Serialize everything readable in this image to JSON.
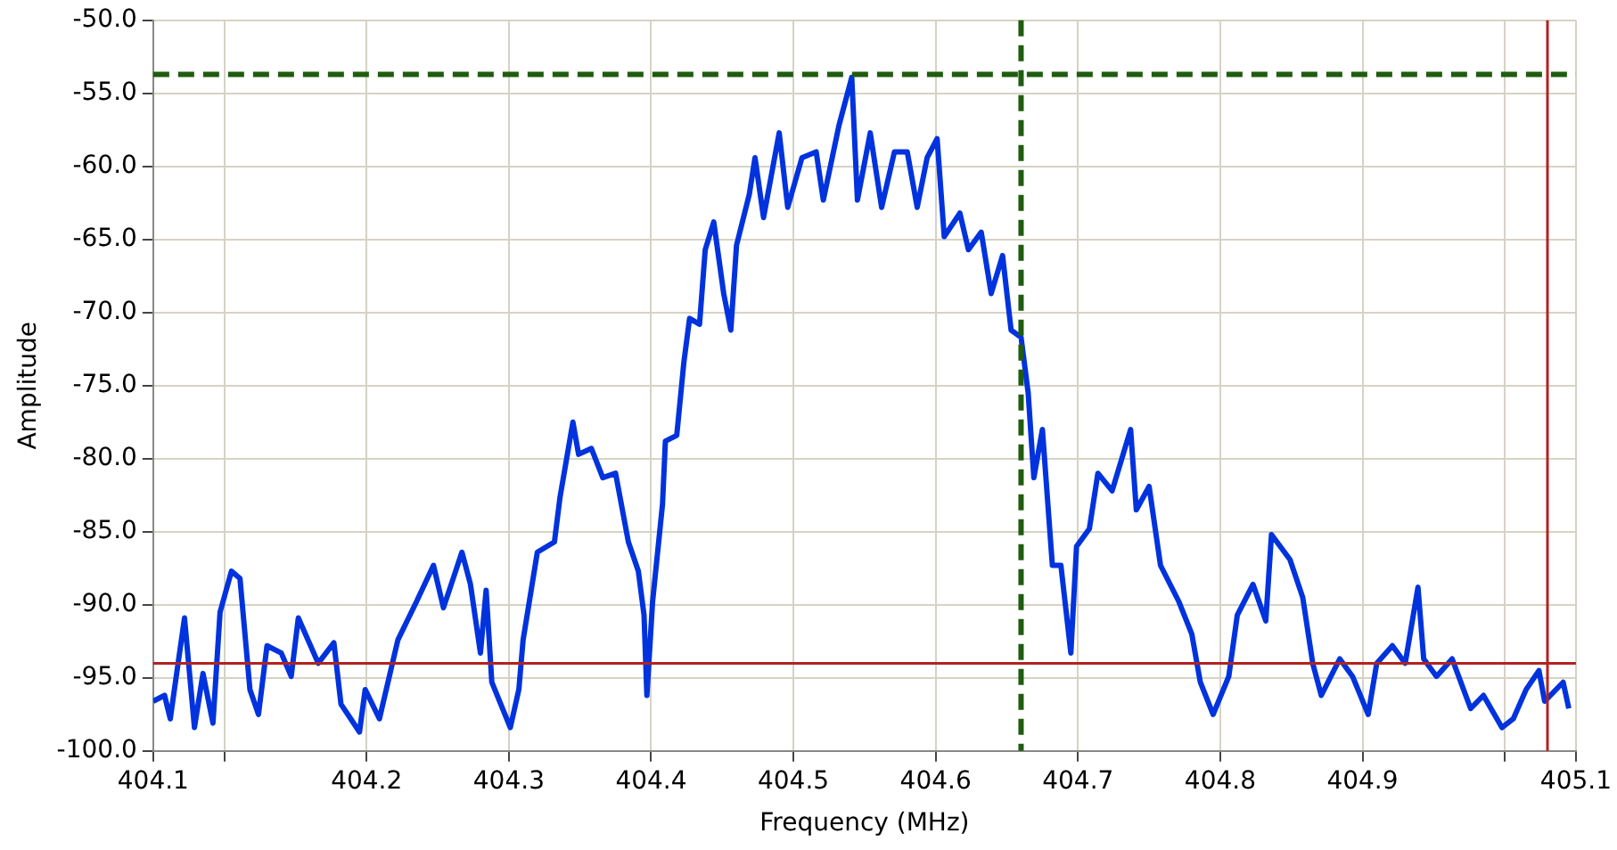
{
  "chart_data": {
    "type": "line",
    "xlabel": "Frequency (MHz)",
    "ylabel": "Amplitude",
    "x": [
      404.05,
      404.058,
      404.062,
      404.072,
      404.079,
      404.085,
      404.092,
      404.097,
      404.105,
      404.111,
      404.118,
      404.124,
      404.13,
      404.14,
      404.147,
      404.152,
      404.166,
      404.177,
      404.182,
      404.195,
      404.199,
      404.209,
      404.222,
      404.235,
      404.247,
      404.254,
      404.267,
      404.273,
      404.28,
      404.284,
      404.288,
      404.301,
      404.307,
      404.31,
      404.32,
      404.332,
      404.336,
      404.345,
      404.349,
      404.358,
      404.366,
      404.375,
      404.384,
      404.391,
      404.395,
      404.397,
      404.401,
      404.408,
      404.41,
      404.418,
      404.423,
      404.427,
      404.434,
      404.438,
      404.444,
      404.451,
      404.456,
      404.46,
      404.469,
      404.473,
      404.479,
      404.49,
      404.496,
      404.506,
      404.516,
      404.521,
      404.532,
      404.541,
      404.545,
      404.554,
      404.562,
      404.571,
      404.58,
      404.587,
      404.594,
      404.601,
      404.606,
      404.617,
      404.623,
      404.632,
      404.639,
      404.647,
      404.653,
      404.66,
      404.665,
      404.669,
      404.675,
      404.682,
      404.688,
      404.695,
      404.699,
      404.708,
      404.714,
      404.724,
      404.737,
      404.741,
      404.75,
      404.758,
      404.771,
      404.78,
      404.786,
      404.795,
      404.806,
      404.812,
      404.823,
      404.832,
      404.836,
      404.849,
      404.858,
      404.865,
      404.871,
      404.884,
      404.893,
      404.904,
      404.91,
      404.921,
      404.93,
      404.939,
      404.943,
      404.952,
      404.963,
      404.976,
      404.985,
      404.998,
      405.006,
      405.015,
      405.024,
      405.028,
      405.041,
      405.045
    ],
    "series": [
      {
        "color": "#0033dd",
        "values": [
          -96.6,
          -96.2,
          -97.8,
          -90.9,
          -98.4,
          -94.7,
          -98.1,
          -90.5,
          -87.7,
          -88.2,
          -95.8,
          -97.5,
          -92.8,
          -93.3,
          -94.9,
          -90.9,
          -94.0,
          -92.6,
          -96.8,
          -98.7,
          -95.8,
          -97.8,
          -92.4,
          -89.8,
          -87.3,
          -90.2,
          -86.4,
          -88.6,
          -93.3,
          -89.0,
          -95.3,
          -98.4,
          -95.8,
          -92.4,
          -86.4,
          -85.7,
          -82.6,
          -77.5,
          -79.7,
          -79.3,
          -81.3,
          -81.0,
          -85.7,
          -87.7,
          -90.7,
          -96.2,
          -89.8,
          -83.1,
          -78.8,
          -78.4,
          -73.4,
          -70.4,
          -70.8,
          -65.7,
          -63.8,
          -68.7,
          -71.2,
          -65.4,
          -61.9,
          -59.4,
          -63.5,
          -57.7,
          -62.8,
          -59.4,
          -59.0,
          -62.3,
          -57.2,
          -53.9,
          -62.3,
          -57.7,
          -62.8,
          -59.0,
          -59.0,
          -62.8,
          -59.4,
          -58.1,
          -64.8,
          -63.2,
          -65.7,
          -64.5,
          -68.7,
          -66.1,
          -71.2,
          -71.7,
          -75.5,
          -81.3,
          -78.0,
          -87.3,
          -87.3,
          -93.3,
          -86.0,
          -84.8,
          -81.0,
          -82.2,
          -78.0,
          -83.5,
          -81.9,
          -87.3,
          -89.8,
          -92.0,
          -95.3,
          -97.5,
          -94.9,
          -90.7,
          -88.6,
          -91.1,
          -85.2,
          -86.9,
          -89.5,
          -94.0,
          -96.2,
          -93.7,
          -94.9,
          -97.5,
          -94.0,
          -92.8,
          -94.0,
          -88.8,
          -93.7,
          -94.9,
          -93.7,
          -97.1,
          -96.2,
          -98.4,
          -97.8,
          -95.8,
          -94.5,
          -96.6,
          -95.3,
          -97.1
        ]
      }
    ],
    "xlim": [
      404.05,
      405.05
    ],
    "xticks": [
      {
        "value": 404.05,
        "label": "404.1"
      },
      {
        "value": 404.1,
        "label": null
      },
      {
        "value": 404.2,
        "label": "404.2"
      },
      {
        "value": 404.3,
        "label": "404.3"
      },
      {
        "value": 404.4,
        "label": "404.4"
      },
      {
        "value": 404.5,
        "label": "404.5"
      },
      {
        "value": 404.6,
        "label": "404.6"
      },
      {
        "value": 404.7,
        "label": "404.7"
      },
      {
        "value": 404.8,
        "label": "404.8"
      },
      {
        "value": 404.9,
        "label": "404.9"
      },
      {
        "value": 405.0,
        "label": null
      },
      {
        "value": 405.05,
        "label": "405.1"
      }
    ],
    "ylim": [
      -100,
      -50
    ],
    "yticks": [
      {
        "value": -100,
        "label": "-100.0"
      },
      {
        "value": -95,
        "label": "-95.0"
      },
      {
        "value": -90,
        "label": "-90.0"
      },
      {
        "value": -85,
        "label": "-85.0"
      },
      {
        "value": -80,
        "label": "-80.0"
      },
      {
        "value": -75,
        "label": "-75.0"
      },
      {
        "value": -70,
        "label": "-70.0"
      },
      {
        "value": -65,
        "label": "-65.0"
      },
      {
        "value": -60,
        "label": "-60.0"
      },
      {
        "value": -55,
        "label": "-55.0"
      },
      {
        "value": -50,
        "label": "-50.0"
      }
    ],
    "grid": true,
    "legend": false,
    "marker": "none",
    "line_style": "solid",
    "ref_lines": [
      {
        "axis": "y",
        "value": -53.7,
        "color": "#1f5c0f",
        "line_style": "dashed"
      },
      {
        "axis": "x",
        "value": 404.66,
        "color": "#1f5c0f",
        "line_style": "dashed"
      },
      {
        "axis": "y",
        "value": -94.0,
        "color": "#b22222",
        "line_style": "solid"
      },
      {
        "axis": "x",
        "value": 405.03,
        "color": "#b22222",
        "line_style": "solid"
      }
    ]
  }
}
